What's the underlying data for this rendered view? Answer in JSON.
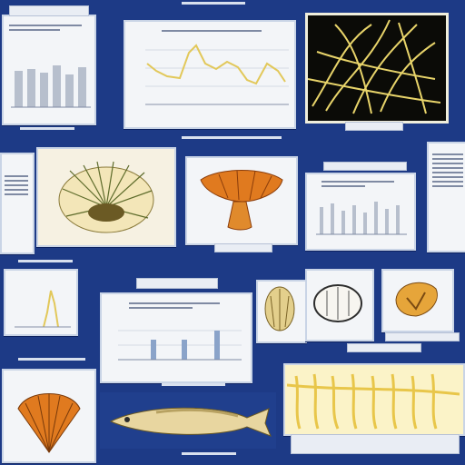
{
  "colors": {
    "background": "#1d3a86",
    "panel": "#f3f5f8",
    "chart_line": "#e2c85a",
    "bar_gray": "#b7bfcd",
    "bar_blue": "#8aa3c9",
    "organism_orange": "#e07a1f",
    "filament_yellow": "#e8c64a"
  },
  "icons": [
    "bar-chart-panel",
    "line-chart-panel",
    "filament-network-image",
    "sea-urchin-illustration",
    "orange-mushroom-illustration",
    "shell-illustration",
    "scallop-illustration",
    "fish-illustration",
    "yellow-filament-grid-image"
  ]
}
